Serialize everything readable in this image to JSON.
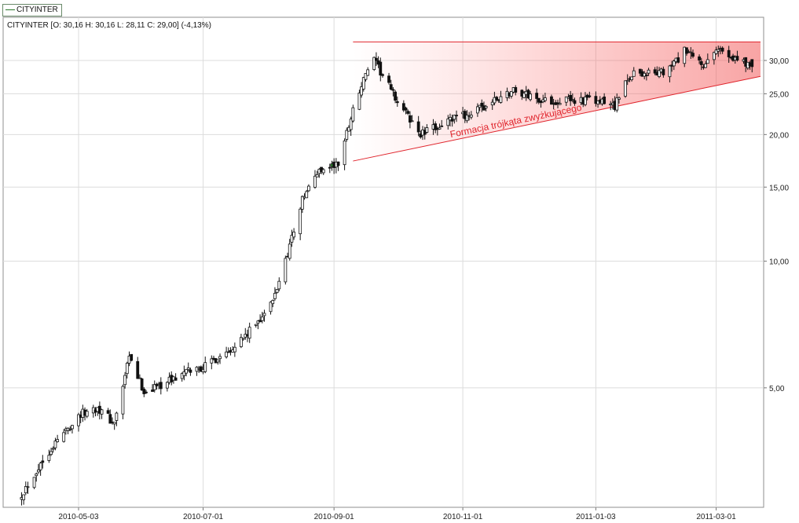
{
  "legend_tab": "CITYINTER",
  "info_line": "CITYINTER [O: 30,16  H: 30,16  L: 28,11  C: 29,00] (-4,13%)",
  "colors": {
    "up": "#ffffff",
    "down": "#111111",
    "wick": "#111111",
    "highlight_up": "#2e9a2e",
    "pattern": "#e0242c",
    "grid": "#dcdcdc"
  },
  "chart_data": {
    "type": "candlestick",
    "symbol": "CITYINTER",
    "scale": "log",
    "ylim": [
      2.6,
      38
    ],
    "xlim": [
      "2010-04-01",
      "2011-03-22"
    ],
    "y_ticks": [
      {
        "value": 5,
        "label": "5,00"
      },
      {
        "value": 10,
        "label": "10,00"
      },
      {
        "value": 15,
        "label": "15,00"
      },
      {
        "value": 20,
        "label": "20,00"
      },
      {
        "value": 25,
        "label": "25,00"
      },
      {
        "value": 30,
        "label": "30,00"
      }
    ],
    "x_ticks": [
      {
        "date": "2010-05-03",
        "label": "2010-05-03"
      },
      {
        "date": "2010-07-01",
        "label": "2010-07-01"
      },
      {
        "date": "2010-09-01",
        "label": "2010-09-01"
      },
      {
        "date": "2010-11-01",
        "label": "2010-11-01"
      },
      {
        "date": "2011-01-03",
        "label": "2011-01-03"
      },
      {
        "date": "2011-03-01",
        "label": "2011-03-01"
      }
    ],
    "last_bar": {
      "open": 30.16,
      "high": 30.16,
      "low": 28.11,
      "close": 29.0,
      "change_pct": -4.13
    },
    "key_points": [
      {
        "date": "2010-04-06",
        "close": 2.8
      },
      {
        "date": "2010-04-20",
        "close": 3.6
      },
      {
        "date": "2010-05-03",
        "close": 4.3
      },
      {
        "date": "2010-05-12",
        "close": 4.5
      },
      {
        "date": "2010-05-20",
        "close": 4.1
      },
      {
        "date": "2010-05-27",
        "close": 5.9
      },
      {
        "date": "2010-06-03",
        "close": 4.9
      },
      {
        "date": "2010-06-15",
        "close": 5.2
      },
      {
        "date": "2010-06-25",
        "close": 5.5
      },
      {
        "date": "2010-07-01",
        "close": 5.6
      },
      {
        "date": "2010-07-10",
        "close": 6.0
      },
      {
        "date": "2010-07-22",
        "close": 6.7
      },
      {
        "date": "2010-08-03",
        "close": 8.0
      },
      {
        "date": "2010-08-10",
        "close": 10.5
      },
      {
        "date": "2010-08-17",
        "close": 14.0
      },
      {
        "date": "2010-08-25",
        "close": 16.5
      },
      {
        "date": "2010-09-03",
        "close": 17.0
      },
      {
        "date": "2010-09-10",
        "close": 23.0
      },
      {
        "date": "2010-09-19",
        "close": 30.5
      },
      {
        "date": "2010-10-01",
        "close": 24.0
      },
      {
        "date": "2010-10-12",
        "close": 20.0
      },
      {
        "date": "2010-10-25",
        "close": 21.5
      },
      {
        "date": "2010-11-08",
        "close": 22.8
      },
      {
        "date": "2010-11-25",
        "close": 25.5
      },
      {
        "date": "2010-12-10",
        "close": 24.0
      },
      {
        "date": "2010-12-28",
        "close": 24.2
      },
      {
        "date": "2011-01-12",
        "close": 23.5
      },
      {
        "date": "2011-01-20",
        "close": 28.0
      },
      {
        "date": "2011-02-05",
        "close": 28.0
      },
      {
        "date": "2011-02-14",
        "close": 31.5
      },
      {
        "date": "2011-02-24",
        "close": 29.0
      },
      {
        "date": "2011-03-02",
        "close": 32.0
      },
      {
        "date": "2011-03-10",
        "close": 30.5
      },
      {
        "date": "2011-03-18",
        "close": 29.0
      }
    ],
    "annotations": [
      {
        "text": "Formacja trójkąta zwyżkującego",
        "kind": "ascending-triangle",
        "resistance": {
          "from": "2010-09-10",
          "to": "2011-03-22",
          "value": 33.2
        },
        "support": {
          "from": "2010-09-10",
          "from_value": 17.3,
          "to": "2011-03-22",
          "to_value": 27.5
        }
      }
    ]
  }
}
